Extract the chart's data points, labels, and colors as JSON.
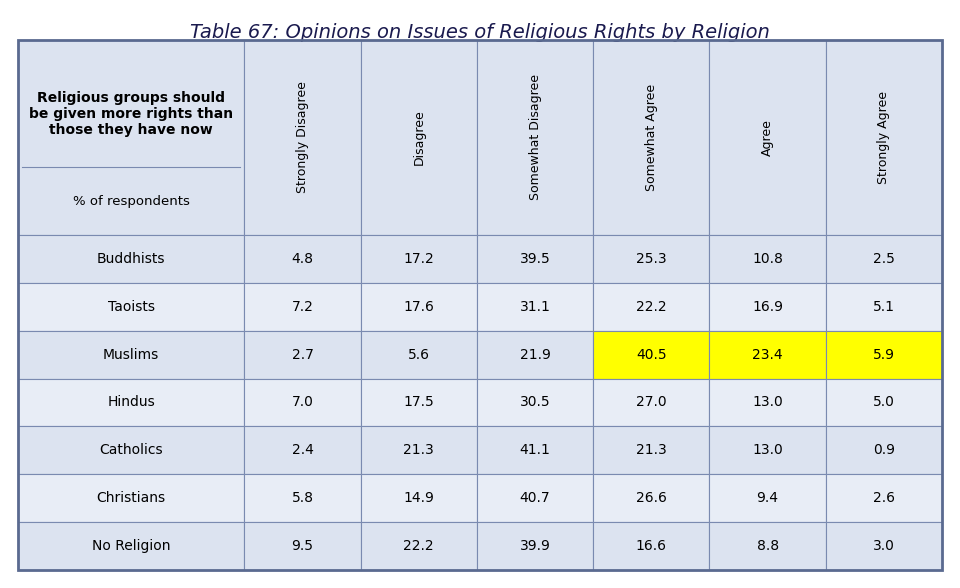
{
  "title": "Table 67: Opinions on Issues of Religious Rights by Religion",
  "header_left_top": "Religious groups should\nbe given more rights than\nthose they have now",
  "header_sub": "% of respondents",
  "col_headers": [
    "Strongly Disagree",
    "Disagree",
    "Somewhat Disagree",
    "Somewhat Agree",
    "Agree",
    "Strongly Agree"
  ],
  "rows": [
    {
      "label": "Buddhists",
      "values": [
        "4.8",
        "17.2",
        "39.5",
        "25.3",
        "10.8",
        "2.5"
      ],
      "highlight": []
    },
    {
      "label": "Taoists",
      "values": [
        "7.2",
        "17.6",
        "31.1",
        "22.2",
        "16.9",
        "5.1"
      ],
      "highlight": []
    },
    {
      "label": "Muslims",
      "values": [
        "2.7",
        "5.6",
        "21.9",
        "40.5",
        "23.4",
        "5.9"
      ],
      "highlight": [
        3,
        4,
        5
      ]
    },
    {
      "label": "Hindus",
      "values": [
        "7.0",
        "17.5",
        "30.5",
        "27.0",
        "13.0",
        "5.0"
      ],
      "highlight": []
    },
    {
      "label": "Catholics",
      "values": [
        "2.4",
        "21.3",
        "41.1",
        "21.3",
        "13.0",
        "0.9"
      ],
      "highlight": []
    },
    {
      "label": "Christians",
      "values": [
        "5.8",
        "14.9",
        "40.7",
        "26.6",
        "9.4",
        "2.6"
      ],
      "highlight": []
    },
    {
      "label": "No Religion",
      "values": [
        "9.5",
        "22.2",
        "39.9",
        "16.6",
        "8.8",
        "3.0"
      ],
      "highlight": []
    }
  ],
  "header_bg": "#dce3f0",
  "row_bg_light": "#e8edf6",
  "row_bg_dark": "#dce3f0",
  "highlight_color": "#ffff00",
  "border_color": "#7a8ab0",
  "title_color": "#1a1a4e",
  "text_color": "#000000",
  "fig_bg": "#ffffff"
}
